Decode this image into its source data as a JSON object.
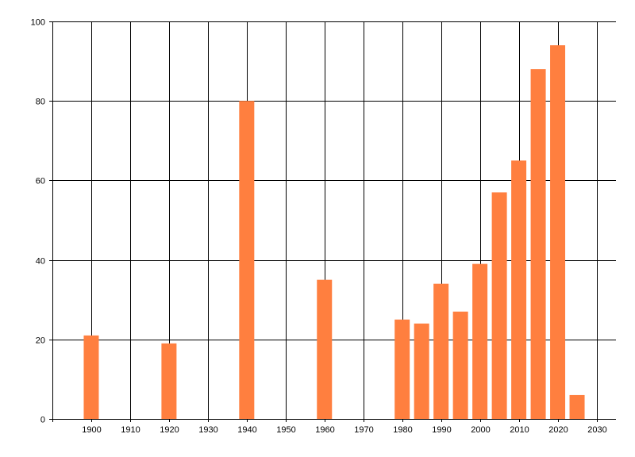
{
  "chart_data": {
    "type": "bar",
    "title": "",
    "xlabel": "",
    "ylabel": "",
    "x": [
      1900,
      1920,
      1940,
      1960,
      1980,
      1985,
      1990,
      1995,
      2000,
      2005,
      2010,
      2015,
      2020,
      2025
    ],
    "values": [
      21,
      19,
      80,
      35,
      25,
      24,
      34,
      27,
      39,
      57,
      65,
      88,
      94,
      6
    ],
    "xlim": [
      1890,
      2035
    ],
    "ylim": [
      0,
      100
    ],
    "x_ticks": [
      "1900",
      "1910",
      "1920",
      "1930",
      "1940",
      "1950",
      "1960",
      "1970",
      "1980",
      "1990",
      "2000",
      "2010",
      "2020",
      "2030"
    ],
    "y_ticks": [
      "0",
      "20",
      "40",
      "60",
      "80",
      "100"
    ],
    "grid": true,
    "bar_color": "#ff7f3f",
    "grid_color": "#000000"
  }
}
